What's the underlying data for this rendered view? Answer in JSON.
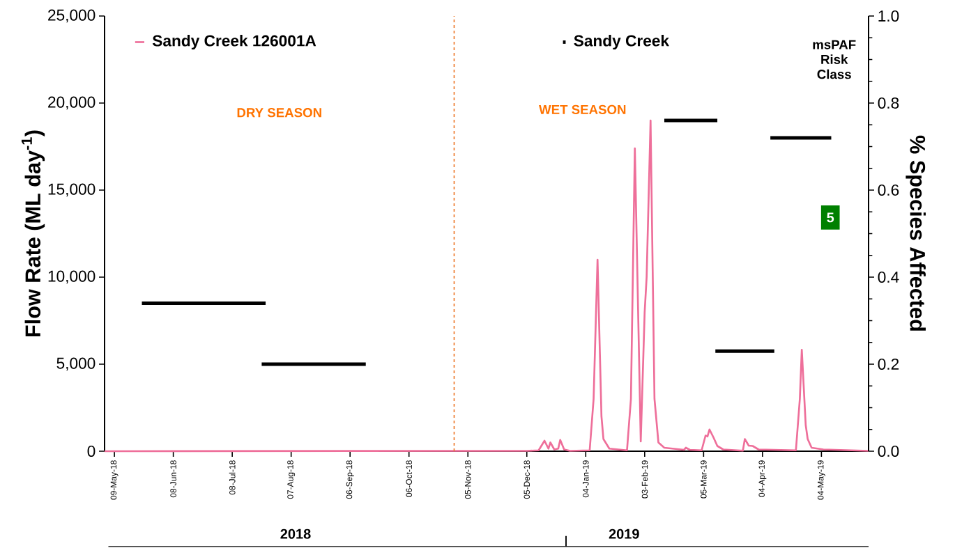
{
  "chart_data": {
    "type": "line",
    "xlabel": null,
    "ylabel": "Flow Rate (ML day$^{-1}$)",
    "y2label": "% Species Affected",
    "xlim": [
      "2018-05-04",
      "2019-05-28"
    ],
    "xticks": [
      {
        "value": "2018-05-09",
        "label": "09-May-18"
      },
      {
        "value": "2018-06-08",
        "label": "08-Jun-18"
      },
      {
        "value": "2018-07-08",
        "label": "08-Jul-18"
      },
      {
        "value": "2018-08-07",
        "label": "07-Aug-18"
      },
      {
        "value": "2018-09-06",
        "label": "06-Sep-18"
      },
      {
        "value": "2018-10-06",
        "label": "06-Oct-18"
      },
      {
        "value": "2018-11-05",
        "label": "05-Nov-18"
      },
      {
        "value": "2018-12-05",
        "label": "05-Dec-18"
      },
      {
        "value": "2019-01-04",
        "label": "04-Jan-19"
      },
      {
        "value": "2019-02-03",
        "label": "03-Feb-19"
      },
      {
        "value": "2019-03-05",
        "label": "05-Mar-19"
      },
      {
        "value": "2019-04-04",
        "label": "04-Apr-19"
      },
      {
        "value": "2019-05-04",
        "label": "04-May-19"
      }
    ],
    "ylim": [
      0,
      25000
    ],
    "yticks": [
      0,
      {
        "value": 5000,
        "label": "5,000"
      },
      {
        "value": 10000,
        "label": "10,000"
      },
      {
        "value": 15000,
        "label": "15,000"
      },
      {
        "value": 20000,
        "label": "20,000"
      },
      {
        "value": 25000,
        "label": "25,000"
      }
    ],
    "y2lim": [
      0,
      1
    ],
    "y2ticks": [
      {
        "value": 0,
        "label": "0.0"
      },
      0.2,
      0.4,
      0.6,
      0.8,
      {
        "value": 1,
        "label": "1.0"
      }
    ],
    "legend": "top",
    "marker": "none",
    "line_style": "solid",
    "ref_lines": [
      {
        "axis": "x",
        "value": "2018-10-29",
        "label": null,
        "color": "#ed7d31",
        "line_style": "dashed"
      }
    ],
    "annotations": [
      "DRY SEASON",
      "WET SEASON",
      "msPAF Risk Class",
      "5",
      "2018",
      "2019"
    ],
    "series": [
      {
        "name": "Sandy Creek 126001A",
        "color": "#ee6f9a",
        "x": [
          "2018-05-04",
          "2018-12-05",
          "2018-12-11",
          "2018-12-14",
          "2018-12-16",
          "2018-12-17",
          "2018-12-19",
          "2018-12-21",
          "2018-12-22",
          "2018-12-24",
          "2018-12-27",
          "2019-01-06",
          "2019-01-08",
          "2019-01-10",
          "2019-01-12",
          "2019-01-13",
          "2019-01-16",
          "2019-01-25",
          "2019-01-27",
          "2019-01-29",
          "2019-02-01",
          "2019-02-03",
          "2019-02-04",
          "2019-02-06",
          "2019-02-08",
          "2019-02-10",
          "2019-02-13",
          "2019-02-23",
          "2019-02-24",
          "2019-02-26",
          "2019-03-04",
          "2019-03-06",
          "2019-03-07",
          "2019-03-08",
          "2019-03-10",
          "2019-03-12",
          "2019-03-15",
          "2019-03-25",
          "2019-03-26",
          "2019-03-28",
          "2019-03-30",
          "2019-04-02",
          "2019-04-21",
          "2019-04-23",
          "2019-04-24",
          "2019-04-26",
          "2019-04-27",
          "2019-04-29",
          "2019-05-05",
          "2019-05-28"
        ],
        "values": [
          0,
          20,
          50,
          600,
          150,
          500,
          100,
          150,
          650,
          100,
          20,
          50,
          3000,
          11000,
          2000,
          700,
          150,
          50,
          3000,
          17400,
          560,
          8000,
          10000,
          19000,
          3000,
          500,
          200,
          80,
          200,
          80,
          50,
          900,
          850,
          1250,
          800,
          300,
          100,
          30,
          700,
          320,
          300,
          100,
          50,
          3000,
          5830,
          1500,
          700,
          200,
          100,
          20
        ]
      },
      {
        "name": "Sandy Creek",
        "color": "#000000",
        "axis": "y2",
        "x": [
          "2018-05-23",
          "2018-07-25",
          null,
          "2018-07-23",
          "2018-09-14",
          null,
          "2019-02-13",
          "2019-03-12",
          null,
          "2019-03-11",
          "2019-04-10",
          null,
          "2019-04-08",
          "2019-05-09"
        ],
        "values": [
          0.34,
          0.34,
          null,
          0.2,
          0.2,
          null,
          0.76,
          0.76,
          null,
          0.23,
          0.23,
          null,
          0.72,
          0.72
        ]
      }
    ]
  }
}
